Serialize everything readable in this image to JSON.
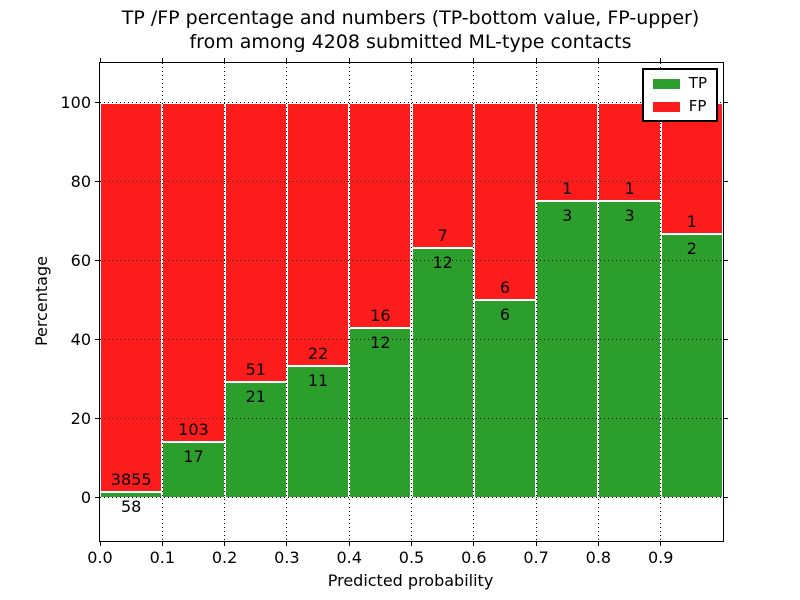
{
  "chart_data": {
    "type": "bar",
    "stacked": true,
    "normalization": "each bar scaled to 100%",
    "title": "TP /FP percentage and numbers (TP-bottom value, FP-upper) from among 4208 submitted ML-type contacts",
    "title_lines": [
      "TP /FP percentage and numbers (TP-bottom value, FP-upper)",
      "from among 4208 submitted ML-type contacts"
    ],
    "xlabel": "Predicted probability",
    "ylabel": "Percentage",
    "total_submitted": 4208,
    "bins": [
      "0.0",
      "0.1",
      "0.2",
      "0.3",
      "0.4",
      "0.5",
      "0.6",
      "0.7",
      "0.8",
      "0.9"
    ],
    "bin_width": 0.1,
    "xlim": [
      0.0,
      1.0
    ],
    "ylim": [
      -11,
      110
    ],
    "xticks": [
      "0.0",
      "0.1",
      "0.2",
      "0.3",
      "0.4",
      "0.5",
      "0.6",
      "0.7",
      "0.8",
      "0.9"
    ],
    "yticks": [
      0,
      20,
      40,
      60,
      80,
      100
    ],
    "grid": true,
    "series": [
      {
        "name": "TP",
        "color": "#2b9e2b",
        "counts": [
          58,
          17,
          21,
          11,
          12,
          12,
          6,
          3,
          3,
          2
        ],
        "label_position": "below green/red boundary"
      },
      {
        "name": "FP",
        "color": "#fc1c1c",
        "counts": [
          3855,
          103,
          51,
          22,
          16,
          7,
          6,
          1,
          1,
          1
        ],
        "label_position": "above green/red boundary"
      }
    ],
    "tp_percent": [
      1.48,
      14.17,
      29.17,
      33.33,
      42.86,
      63.16,
      50.0,
      75.0,
      75.0,
      66.67
    ],
    "legend": {
      "position": "upper right"
    }
  }
}
